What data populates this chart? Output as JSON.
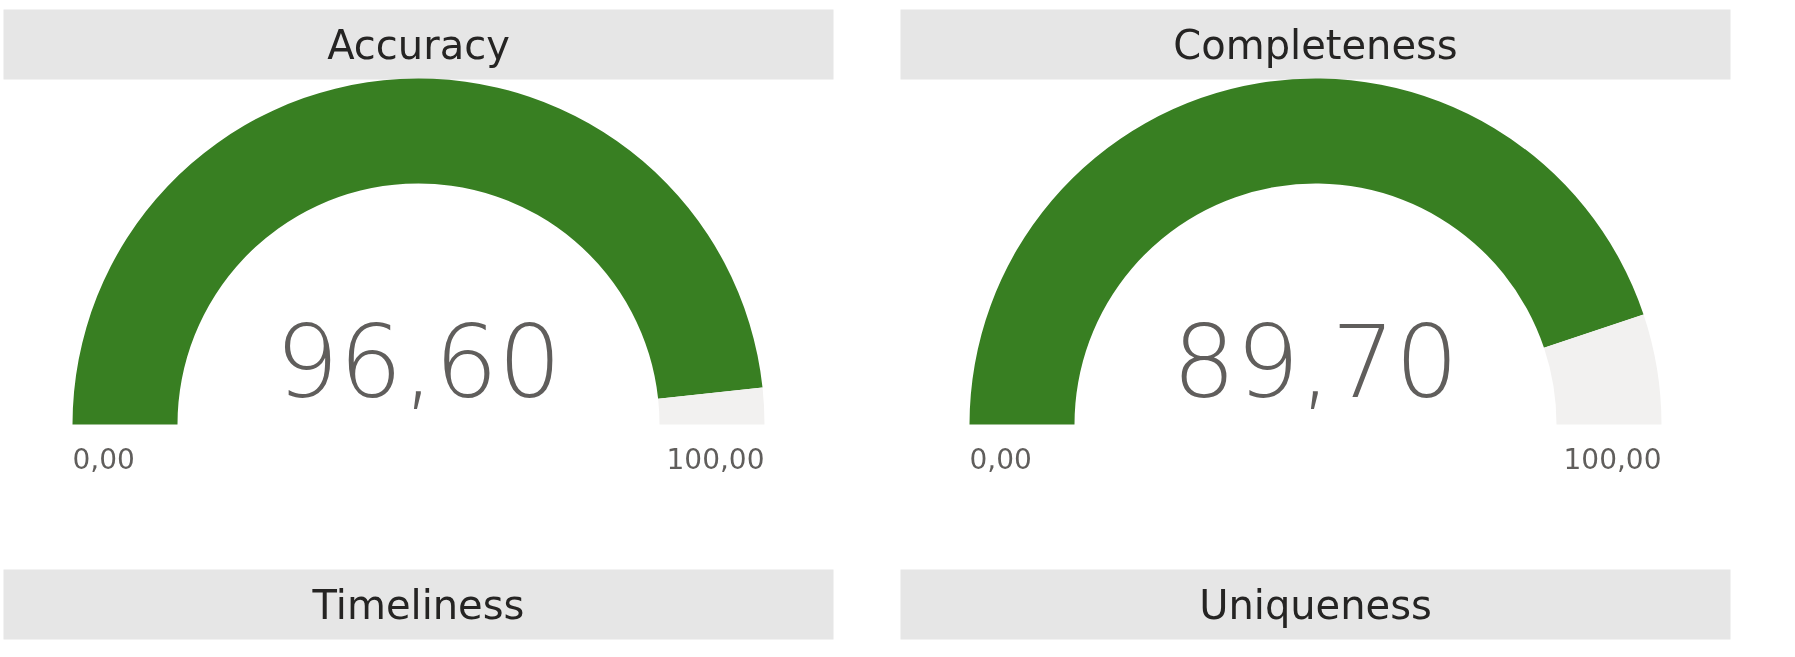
{
  "chart_data": [
    {
      "type": "donut",
      "title": "Accuracy",
      "categories": [
        null,
        null
      ],
      "values": [
        96.6,
        3.4
      ],
      "colors": [
        "#387f22",
        "#f2f1f0"
      ],
      "value_labels": [
        "96,60",
        null
      ],
      "annotations": [
        "0,00",
        "100,00"
      ]
    },
    {
      "type": "donut",
      "title": "Completeness",
      "categories": [
        null,
        null
      ],
      "values": [
        89.7,
        10.3
      ],
      "colors": [
        "#387f22",
        "#f2f1f0"
      ],
      "value_labels": [
        "89,70",
        null
      ],
      "annotations": [
        "0,00",
        "100,00"
      ]
    },
    {
      "type": "other",
      "title": "Timeliness"
    },
    {
      "type": "other",
      "title": "Uniqueness"
    }
  ]
}
